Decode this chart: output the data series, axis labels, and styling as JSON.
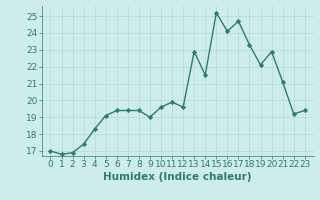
{
  "x": [
    0,
    1,
    2,
    3,
    4,
    5,
    6,
    7,
    8,
    9,
    10,
    11,
    12,
    13,
    14,
    15,
    16,
    17,
    18,
    19,
    20,
    21,
    22,
    23
  ],
  "y": [
    17.0,
    16.8,
    16.9,
    17.4,
    18.3,
    19.1,
    19.4,
    19.4,
    19.4,
    19.0,
    19.6,
    19.9,
    19.6,
    22.9,
    21.5,
    25.2,
    24.1,
    24.7,
    23.3,
    22.1,
    22.9,
    21.1,
    19.2,
    19.4
  ],
  "line_color": "#2d7d6f",
  "marker": "D",
  "marker_size": 2.2,
  "bg_color": "#ceecea",
  "grid_color": "#b8d8d5",
  "xlabel": "Humidex (Indice chaleur)",
  "ylim_min": 16.7,
  "ylim_max": 25.6,
  "yticks": [
    17,
    18,
    19,
    20,
    21,
    22,
    23,
    24,
    25
  ],
  "xticks": [
    0,
    1,
    2,
    3,
    4,
    5,
    6,
    7,
    8,
    9,
    10,
    11,
    12,
    13,
    14,
    15,
    16,
    17,
    18,
    19,
    20,
    21,
    22,
    23
  ],
  "tick_label_fontsize": 6.5,
  "xlabel_fontsize": 7.5,
  "line_width": 1.0
}
